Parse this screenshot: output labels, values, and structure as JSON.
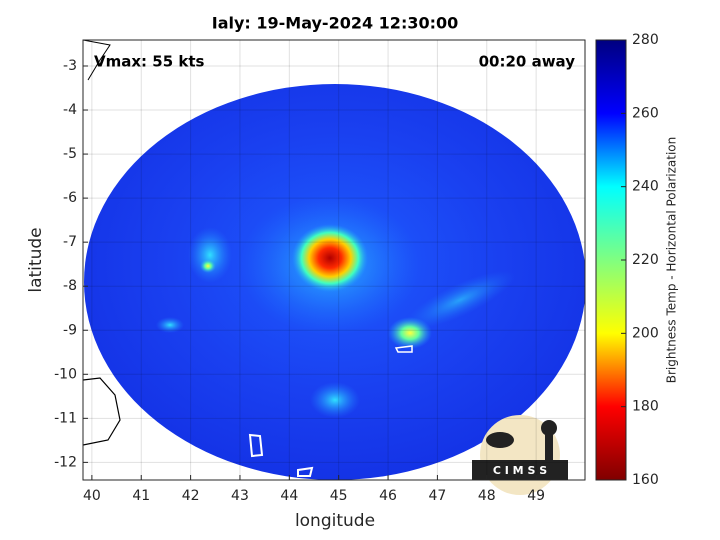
{
  "chart_data": {
    "type": "map",
    "title": "Ialy: 19-May-2024 12:30:00",
    "annotations": [
      "Vmax: 55 kts",
      "00:20 away"
    ],
    "xlabel": "longitude",
    "ylabel": "latitude",
    "xlim": [
      39.82,
      49.99
    ],
    "ylim": [
      -12.4,
      -2.41
    ],
    "xticks": [
      40,
      41,
      42,
      43,
      44,
      45,
      46,
      47,
      48,
      49
    ],
    "yticks": [
      -12,
      -11,
      -10,
      -9,
      -8,
      -7,
      -6,
      -5,
      -4,
      -3
    ],
    "grid": true,
    "colorbar": {
      "label": "Brightness Temp - Horizontal Polarization",
      "colormap": "jet",
      "lim": [
        160,
        280
      ],
      "ticks": [
        160,
        180,
        200,
        220,
        240,
        260,
        280
      ]
    },
    "logo_text": "C I M S S"
  }
}
